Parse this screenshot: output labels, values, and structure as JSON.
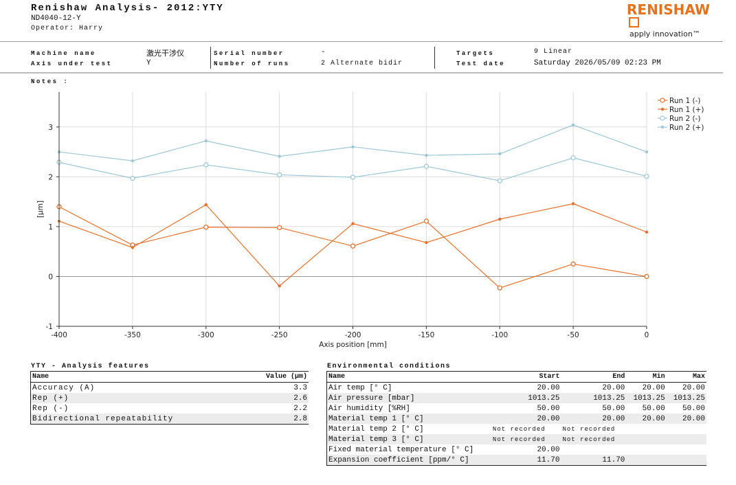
{
  "header": {
    "title": "Renishaw Analysis- 2012:YTY",
    "model": "ND4040-12-Y",
    "operator": "Operator: Harry",
    "logo_text": "RENISHAW",
    "tagline": "apply innovation™"
  },
  "info": {
    "machine_name_label": "Machine name",
    "machine_name_value": "激光干涉仪",
    "axis_label": "Axis under test",
    "axis_value": "Y",
    "serial_label": "Serial number",
    "serial_value": "-",
    "runs_label": "Number of runs",
    "runs_value": "2 Alternate bidir",
    "targets_label": "Targets",
    "targets_value": "9 Linear",
    "date_label": "Test date",
    "date_value": "Saturday 2026/05/09 02:23 PM"
  },
  "notes_label": "Notes :",
  "colors": {
    "run1": "#e8702a",
    "run2": "#9cc7d6",
    "grid": "#dcdcdc",
    "zero_line": "#999999"
  },
  "chart_data": {
    "type": "line",
    "xlabel": "Axis position [mm]",
    "ylabel": "[µm]",
    "xlim": [
      -400,
      0
    ],
    "ylim": [
      -1,
      3.7
    ],
    "x_ticks": [
      -400,
      -350,
      -300,
      -250,
      -200,
      -150,
      -100,
      -50,
      0
    ],
    "y_ticks": [
      -1,
      0,
      1,
      2,
      3
    ],
    "x": [
      -400,
      -350,
      -300,
      -250,
      -200,
      -150,
      -100,
      -50,
      0
    ],
    "grid": true,
    "legend_position": "top-right",
    "series": [
      {
        "name": "Run 1 (-)",
        "marker": "open-circle",
        "color": "#e8702a",
        "values": [
          1.4,
          0.63,
          0.99,
          0.98,
          0.61,
          1.11,
          -0.23,
          0.25,
          0.0
        ]
      },
      {
        "name": "Run 1 (+)",
        "marker": "dot",
        "color": "#e8702a",
        "values": [
          1.11,
          0.58,
          1.44,
          -0.19,
          1.06,
          0.68,
          1.15,
          1.46,
          0.89
        ]
      },
      {
        "name": "Run 2 (-)",
        "marker": "open-circle",
        "color": "#9cc7d6",
        "values": [
          2.29,
          1.97,
          2.24,
          2.04,
          1.99,
          2.21,
          1.92,
          2.38,
          2.01
        ]
      },
      {
        "name": "Run 2 (+)",
        "marker": "dot",
        "color": "#9cc7d6",
        "values": [
          2.5,
          2.32,
          2.72,
          2.41,
          2.6,
          2.43,
          2.46,
          3.04,
          2.5
        ]
      }
    ]
  },
  "features": {
    "title": "YTY - Analysis features",
    "col_name": "Name",
    "col_value": "Value (µm)",
    "rows": [
      {
        "name": "Accuracy (A)",
        "value": "3.3"
      },
      {
        "name": "Rep (+)",
        "value": "2.6"
      },
      {
        "name": "Rep (-)",
        "value": "2.2"
      },
      {
        "name": "Bidirectional repeatability",
        "value": "2.8"
      }
    ]
  },
  "environment": {
    "title": "Environmental conditions",
    "cols": [
      "Name",
      "Start",
      "End",
      "Min",
      "Max"
    ],
    "rows": [
      {
        "name": "Air temp [° C]",
        "start": "20.00",
        "end": "20.00",
        "min": "20.00",
        "max": "20.00"
      },
      {
        "name": "Air pressure [mbar]",
        "start": "1013.25",
        "end": "1013.25",
        "min": "1013.25",
        "max": "1013.25"
      },
      {
        "name": "Air humidity [%RH]",
        "start": "50.00",
        "end": "50.00",
        "min": "50.00",
        "max": "50.00"
      },
      {
        "name": "Material temp 1 [° C]",
        "start": "20.00",
        "end": "20.00",
        "min": "20.00",
        "max": "20.00"
      },
      {
        "name": "Material temp 2 [° C]",
        "start": "Not recorded",
        "end": "Not recorded",
        "min": "",
        "max": ""
      },
      {
        "name": "Material temp 3 [° C]",
        "start": "Not recorded",
        "end": "Not recorded",
        "min": "",
        "max": ""
      },
      {
        "name": "Fixed material temperature [° C]",
        "start": "20.00",
        "end": "",
        "min": "",
        "max": ""
      },
      {
        "name": "Expansion coefficient [ppm/° C]",
        "start": "11.70",
        "end": "11.70",
        "min": "",
        "max": ""
      }
    ]
  }
}
